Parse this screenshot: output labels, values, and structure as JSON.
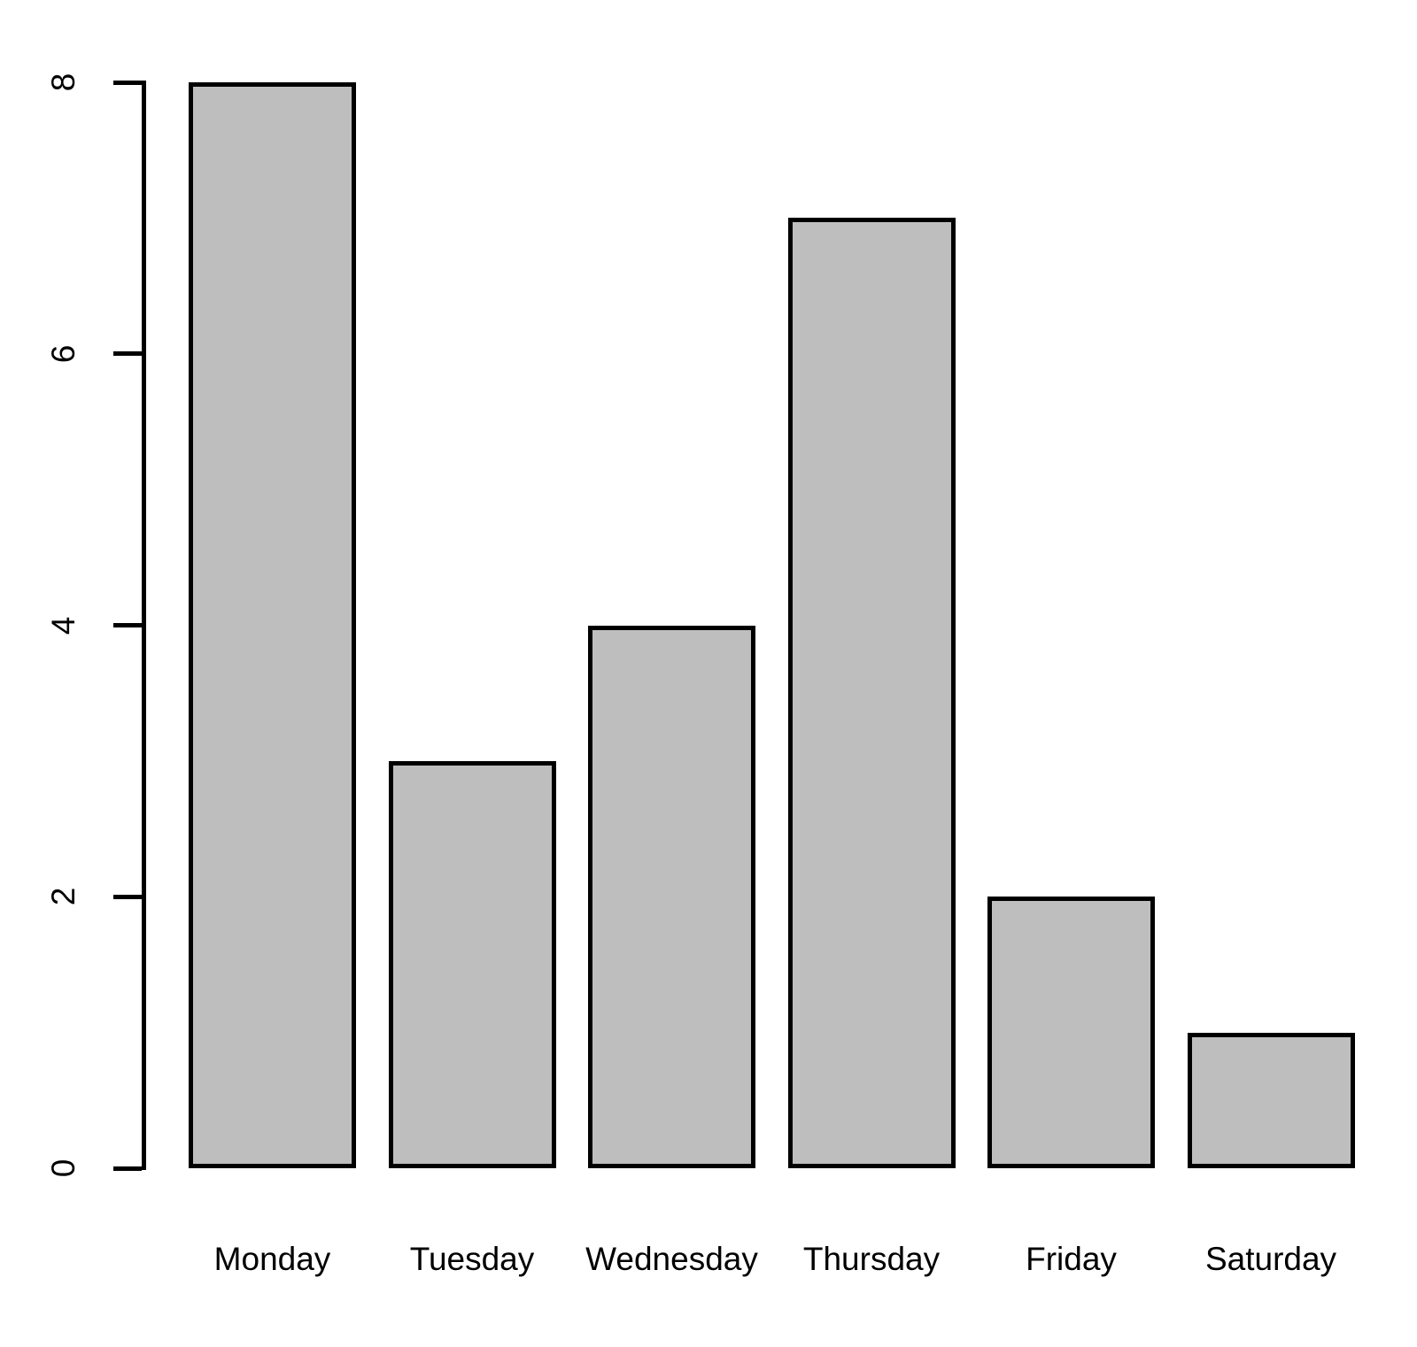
{
  "chart_data": {
    "type": "bar",
    "title": "",
    "xlabel": "",
    "ylabel": "",
    "categories": [
      "Monday",
      "Tuesday",
      "Wednesday",
      "Thursday",
      "Friday",
      "Saturday"
    ],
    "values": [
      8,
      3,
      4,
      7,
      2,
      1
    ],
    "ylim": [
      0,
      8
    ],
    "yticks": [
      0,
      2,
      4,
      6,
      8
    ],
    "grid": false,
    "legend_position": "none",
    "colors": {
      "bar_fill": "#bebebe",
      "bar_border": "#000000",
      "axis": "#000000",
      "background": "#ffffff",
      "text": "#000000"
    }
  }
}
